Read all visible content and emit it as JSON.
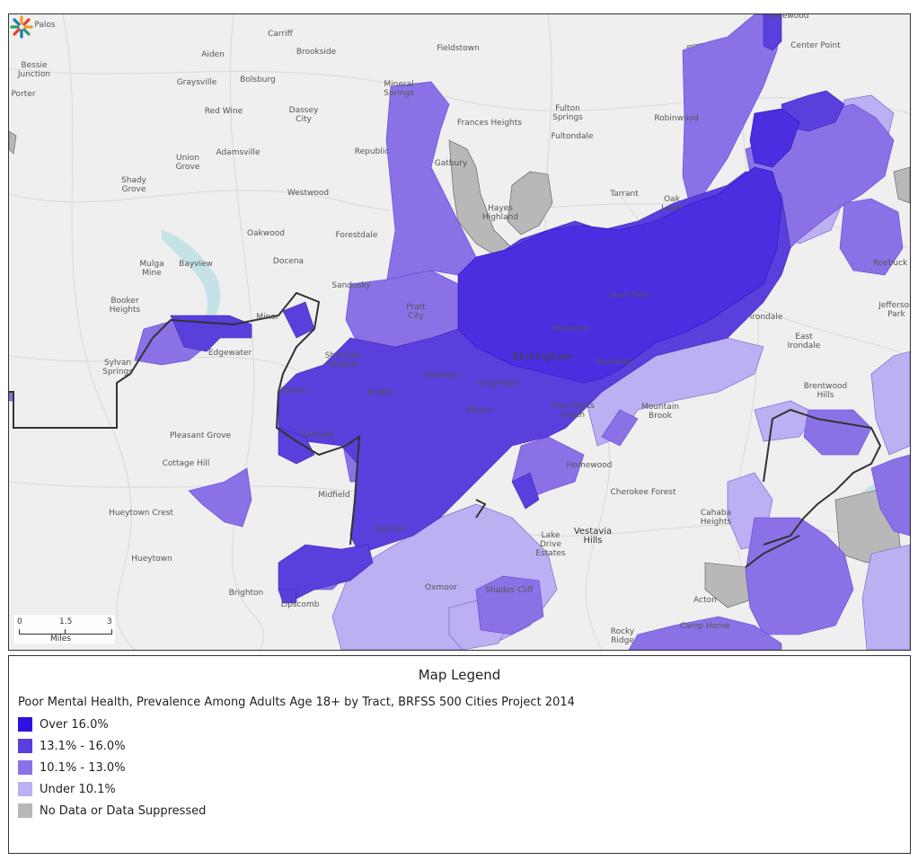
{
  "map": {
    "colors": {
      "over16": "#2d12e0",
      "c13to16": "#5a3fdc",
      "c10to13": "#8a72e6",
      "under10": "#bcb0f2",
      "nodata": "#b8b8b8",
      "background": "#efefef",
      "water": "#c5e2e6"
    },
    "places": [
      {
        "name": "Palos",
        "cls": ""
      },
      {
        "name": "Carriff",
        "cls": ""
      },
      {
        "name": "Brookside",
        "cls": ""
      },
      {
        "name": "Fieldstown",
        "cls": ""
      },
      {
        "name": "Lakewood",
        "cls": ""
      },
      {
        "name": "Center Point",
        "cls": ""
      },
      {
        "name": "Aiden",
        "cls": ""
      },
      {
        "name": "Bessie Junction",
        "cls": ""
      },
      {
        "name": "Porter",
        "cls": ""
      },
      {
        "name": "Graysville",
        "cls": ""
      },
      {
        "name": "Bolsburg",
        "cls": ""
      },
      {
        "name": "Red Wine",
        "cls": ""
      },
      {
        "name": "Dassey City",
        "cls": ""
      },
      {
        "name": "Mineral Springs",
        "cls": ""
      },
      {
        "name": "Frances Heights",
        "cls": ""
      },
      {
        "name": "Fulton Springs",
        "cls": ""
      },
      {
        "name": "Fultondale",
        "cls": ""
      },
      {
        "name": "Robinwood",
        "cls": ""
      },
      {
        "name": "Adamsville",
        "cls": ""
      },
      {
        "name": "Republic",
        "cls": ""
      },
      {
        "name": "Union Grove",
        "cls": ""
      },
      {
        "name": "Gatbury",
        "cls": ""
      },
      {
        "name": "Shady Grove",
        "cls": ""
      },
      {
        "name": "Westwood",
        "cls": ""
      },
      {
        "name": "Tarrant",
        "cls": ""
      },
      {
        "name": "Oak Lawn",
        "cls": ""
      },
      {
        "name": "Hayes Highland",
        "cls": ""
      },
      {
        "name": "Oakwood",
        "cls": ""
      },
      {
        "name": "Forestdale",
        "cls": ""
      },
      {
        "name": "Mulga Mine",
        "cls": ""
      },
      {
        "name": "Bayview",
        "cls": ""
      },
      {
        "name": "Docena",
        "cls": ""
      },
      {
        "name": "Roebuck",
        "cls": ""
      },
      {
        "name": "Sandusky",
        "cls": ""
      },
      {
        "name": "Booker Heights",
        "cls": ""
      },
      {
        "name": "Pratt City",
        "cls": ""
      },
      {
        "name": "Avon Park",
        "cls": ""
      },
      {
        "name": "Irondale",
        "cls": ""
      },
      {
        "name": "Minor",
        "cls": ""
      },
      {
        "name": "Norwood",
        "cls": ""
      },
      {
        "name": "Edgewater",
        "cls": ""
      },
      {
        "name": "Sherman Heights",
        "cls": ""
      },
      {
        "name": "Birmingham",
        "cls": "big"
      },
      {
        "name": "East Irondale",
        "cls": ""
      },
      {
        "name": "Jefferson Park",
        "cls": ""
      },
      {
        "name": "Sylvan Springs",
        "cls": ""
      },
      {
        "name": "Avondale",
        "cls": ""
      },
      {
        "name": "Owenton",
        "cls": ""
      },
      {
        "name": "Graymont",
        "cls": ""
      },
      {
        "name": "Robson",
        "cls": ""
      },
      {
        "name": "Ensley",
        "cls": ""
      },
      {
        "name": "Brentwood Hills",
        "cls": ""
      },
      {
        "name": "Mountain Brook",
        "cls": ""
      },
      {
        "name": "Elyton",
        "cls": ""
      },
      {
        "name": "Five Points South",
        "cls": ""
      },
      {
        "name": "Fairfield",
        "cls": ""
      },
      {
        "name": "Pleasant Grove",
        "cls": ""
      },
      {
        "name": "Cottage Hill",
        "cls": ""
      },
      {
        "name": "Homewood",
        "cls": ""
      },
      {
        "name": "Midfield",
        "cls": ""
      },
      {
        "name": "Cherokee Forest",
        "cls": ""
      },
      {
        "name": "Hueytown Crest",
        "cls": ""
      },
      {
        "name": "Cahaba Heights",
        "cls": ""
      },
      {
        "name": "Duncan",
        "cls": ""
      },
      {
        "name": "Vestavia Hills",
        "cls": "city"
      },
      {
        "name": "Lake Drive Estates",
        "cls": ""
      },
      {
        "name": "Hueytown",
        "cls": ""
      },
      {
        "name": "Oxmoor",
        "cls": ""
      },
      {
        "name": "Shades Cliff",
        "cls": ""
      },
      {
        "name": "Brighton",
        "cls": ""
      },
      {
        "name": "Lipscomb",
        "cls": ""
      },
      {
        "name": "Acton",
        "cls": ""
      },
      {
        "name": "Camp Horne",
        "cls": ""
      },
      {
        "name": "Rocky Ridge",
        "cls": ""
      }
    ],
    "scale": {
      "t0": "0",
      "t1": "1.5",
      "t2": "3",
      "units": "Miles"
    }
  },
  "legend": {
    "title": "Map Legend",
    "subtitle": "Poor Mental Health, Prevalence Among Adults Age 18+ by Tract, BRFSS 500 Cities Project 2014",
    "items": [
      {
        "label": "Over 16.0%",
        "color": "#2d12e0"
      },
      {
        "label": "13.1% - 16.0%",
        "color": "#5a3fdc"
      },
      {
        "label": "10.1% - 13.0%",
        "color": "#8a72e6"
      },
      {
        "label": "Under 10.1%",
        "color": "#bcb0f2"
      },
      {
        "label": "No Data or Data Suppressed",
        "color": "#b8b8b8"
      }
    ]
  }
}
